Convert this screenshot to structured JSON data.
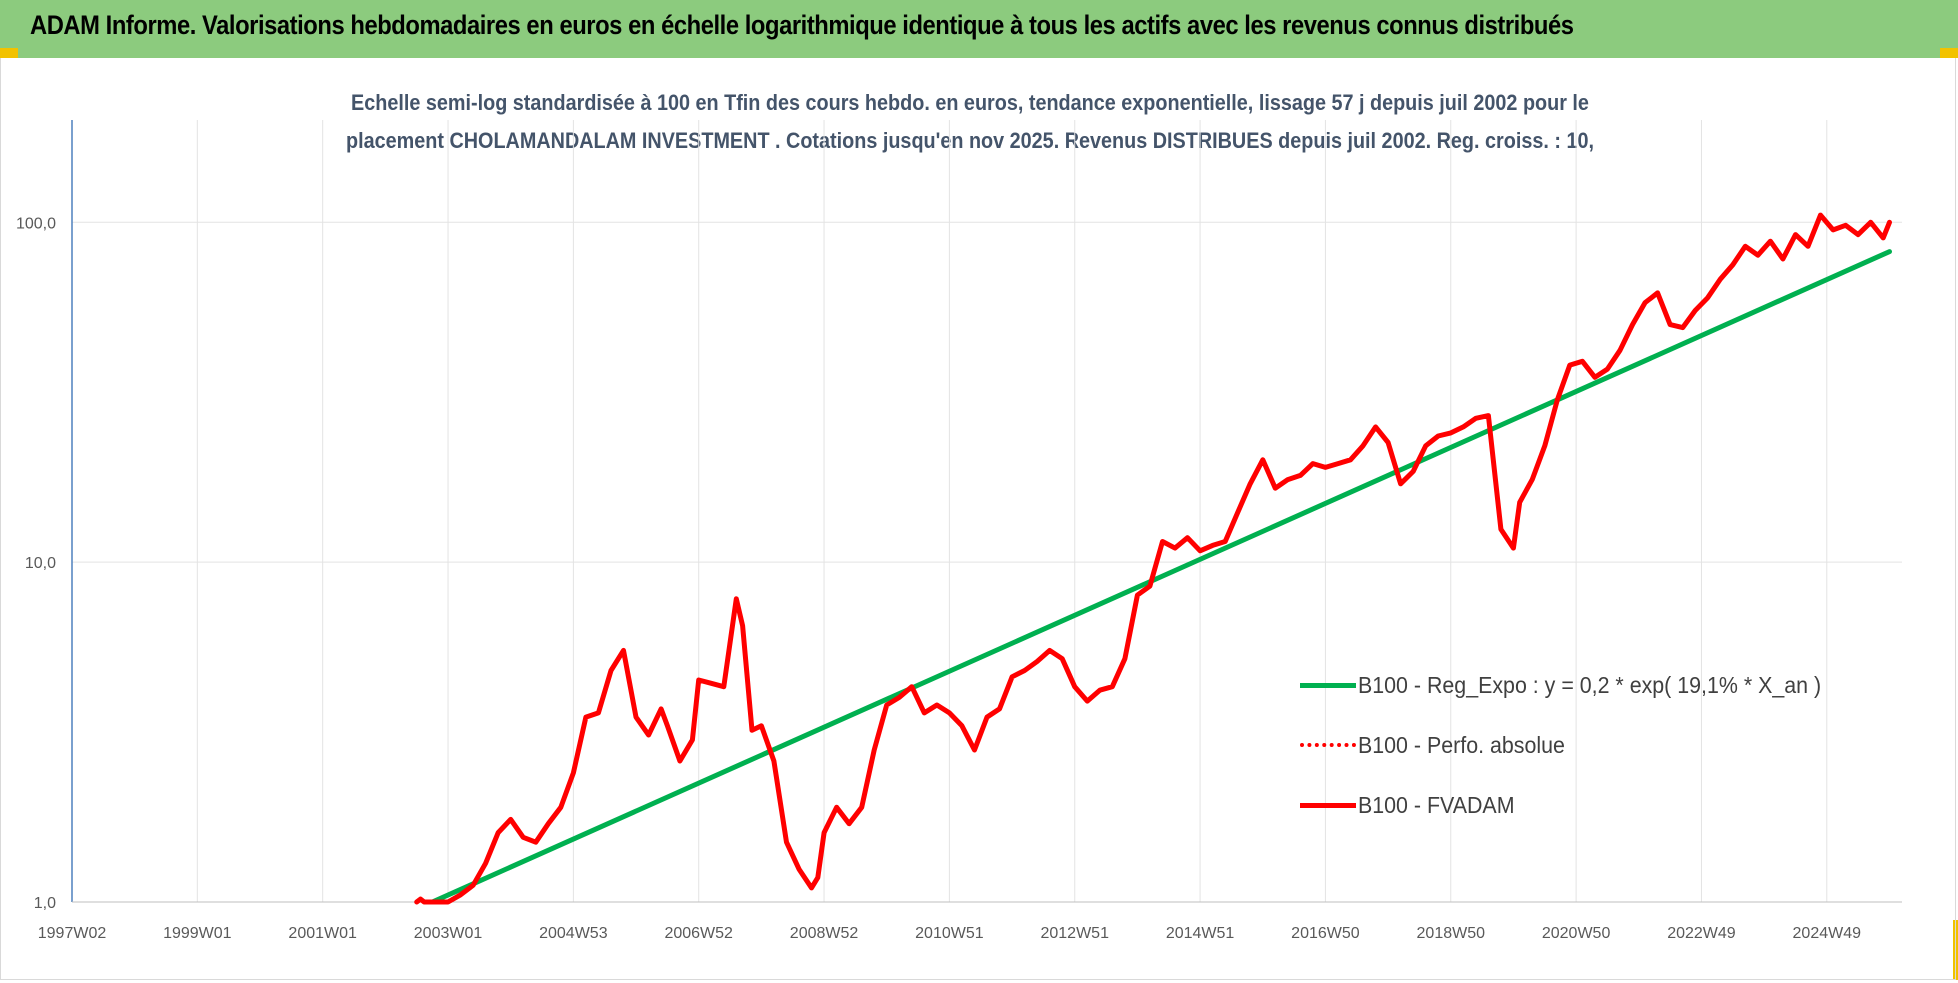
{
  "banner": {
    "title": "ADAM Informe. Valorisations hebdomadaires en euros en échelle logarithmique identique à tous les actifs avec les revenus connus distribués",
    "background": "#8ccb7e"
  },
  "chart_data": {
    "type": "line",
    "title_lines": [
      "Echelle semi-log standardisée à 100 en Tfin des cours hebdo. en euros, tendance exponentielle, lissage 57 j depuis juil 2002 pour le",
      "placement CHOLAMANDALAM INVESTMENT . Cotations jusqu'en nov 2025. Revenus DISTRIBUES depuis juil 2002. Reg. croiss. : 10,"
    ],
    "x_ticks": [
      "1997W02",
      "1999W01",
      "2001W01",
      "2003W01",
      "2004W53",
      "2006W52",
      "2008W52",
      "2010W51",
      "2012W51",
      "2014W51",
      "2016W50",
      "2018W50",
      "2020W50",
      "2022W49",
      "2024W49"
    ],
    "x_tick_years": [
      1997.0,
      1999.0,
      2001.0,
      2003.0,
      2005.0,
      2007.0,
      2009.0,
      2011.0,
      2013.0,
      2015.0,
      2017.0,
      2019.0,
      2021.0,
      2023.0,
      2025.0
    ],
    "x_range": [
      1997.0,
      2026.2
    ],
    "y_scale": "log",
    "y_ticks": [
      "1,0",
      "10,0",
      "100,0"
    ],
    "y_tick_values": [
      1,
      10,
      100
    ],
    "y_range": [
      1,
      200
    ],
    "grid": true,
    "legend_position": "right-middle",
    "series": [
      {
        "name": "B100 - Reg_Expo : y = 0,2 * exp( 19,1% *  X_an )",
        "color": "#00b050",
        "style": "solid",
        "x": [
          2002.75,
          2026.0
        ],
        "y": [
          0.98,
          82
        ]
      },
      {
        "name": "B100 - Perfo. absolue",
        "color": "#ff0000",
        "style": "dotted",
        "x": [],
        "y": []
      },
      {
        "name": "B100 - FVADAM",
        "color": "#ff0000",
        "style": "solid",
        "x": [
          2002.5,
          2002.56,
          2002.62,
          2002.75,
          2003.0,
          2003.2,
          2003.4,
          2003.6,
          2003.8,
          2004.0,
          2004.2,
          2004.4,
          2004.6,
          2004.8,
          2005.0,
          2005.2,
          2005.4,
          2005.6,
          2005.8,
          2006.0,
          2006.2,
          2006.4,
          2006.5,
          2006.7,
          2006.9,
          2007.0,
          2007.2,
          2007.4,
          2007.6,
          2007.7,
          2007.85,
          2008.0,
          2008.2,
          2008.4,
          2008.6,
          2008.8,
          2008.9,
          2009.0,
          2009.2,
          2009.4,
          2009.6,
          2009.8,
          2010.0,
          2010.2,
          2010.4,
          2010.6,
          2010.8,
          2011.0,
          2011.2,
          2011.4,
          2011.6,
          2011.8,
          2012.0,
          2012.2,
          2012.4,
          2012.6,
          2012.8,
          2013.0,
          2013.2,
          2013.4,
          2013.6,
          2013.8,
          2014.0,
          2014.2,
          2014.4,
          2014.6,
          2014.8,
          2015.0,
          2015.2,
          2015.4,
          2015.6,
          2015.8,
          2016.0,
          2016.2,
          2016.4,
          2016.6,
          2016.8,
          2017.0,
          2017.2,
          2017.4,
          2017.6,
          2017.8,
          2018.0,
          2018.2,
          2018.4,
          2018.6,
          2018.8,
          2019.0,
          2019.2,
          2019.4,
          2019.6,
          2019.8,
          2020.0,
          2020.1,
          2020.3,
          2020.5,
          2020.7,
          2020.9,
          2021.1,
          2021.3,
          2021.5,
          2021.7,
          2021.9,
          2022.1,
          2022.3,
          2022.5,
          2022.7,
          2022.9,
          2023.1,
          2023.3,
          2023.5,
          2023.7,
          2023.9,
          2024.1,
          2024.3,
          2024.5,
          2024.7,
          2024.9,
          2025.1,
          2025.3,
          2025.5,
          2025.7,
          2025.9,
          2026.0
        ],
        "y": [
          0.97,
          1.02,
          0.96,
          0.92,
          0.98,
          1.05,
          1.12,
          1.3,
          1.6,
          1.75,
          1.55,
          1.5,
          1.7,
          1.9,
          2.4,
          3.5,
          3.6,
          4.8,
          5.5,
          3.5,
          3.1,
          3.7,
          3.3,
          2.6,
          3.0,
          4.5,
          4.4,
          4.3,
          7.8,
          6.5,
          3.2,
          3.3,
          2.6,
          1.5,
          1.25,
          1.1,
          1.18,
          1.6,
          1.9,
          1.7,
          1.9,
          2.8,
          3.8,
          4.0,
          4.3,
          3.6,
          3.8,
          3.6,
          3.3,
          2.8,
          3.5,
          3.7,
          4.6,
          4.8,
          5.1,
          5.5,
          5.2,
          4.3,
          3.9,
          4.2,
          4.3,
          5.2,
          8.0,
          8.5,
          11.5,
          11.0,
          11.8,
          10.8,
          11.2,
          11.5,
          14.0,
          17.0,
          20.0,
          16.5,
          17.5,
          18.0,
          19.5,
          19.0,
          19.5,
          20.0,
          22.0,
          25.0,
          22.5,
          17.0,
          18.5,
          22.0,
          23.5,
          24.0,
          25.0,
          26.5,
          27.0,
          12.5,
          11.0,
          15.0,
          17.5,
          22.0,
          30.0,
          38.0,
          39.0,
          35.0,
          37.0,
          42.0,
          50.0,
          58.0,
          62.0,
          50.0,
          49.0,
          55.0,
          60.0,
          68.0,
          75.0,
          85.0,
          80.0,
          88.0,
          78.0,
          92.0,
          85.0,
          105.0,
          95.0,
          98.0,
          92.0,
          100.0,
          90.0,
          100.0
        ]
      }
    ]
  }
}
